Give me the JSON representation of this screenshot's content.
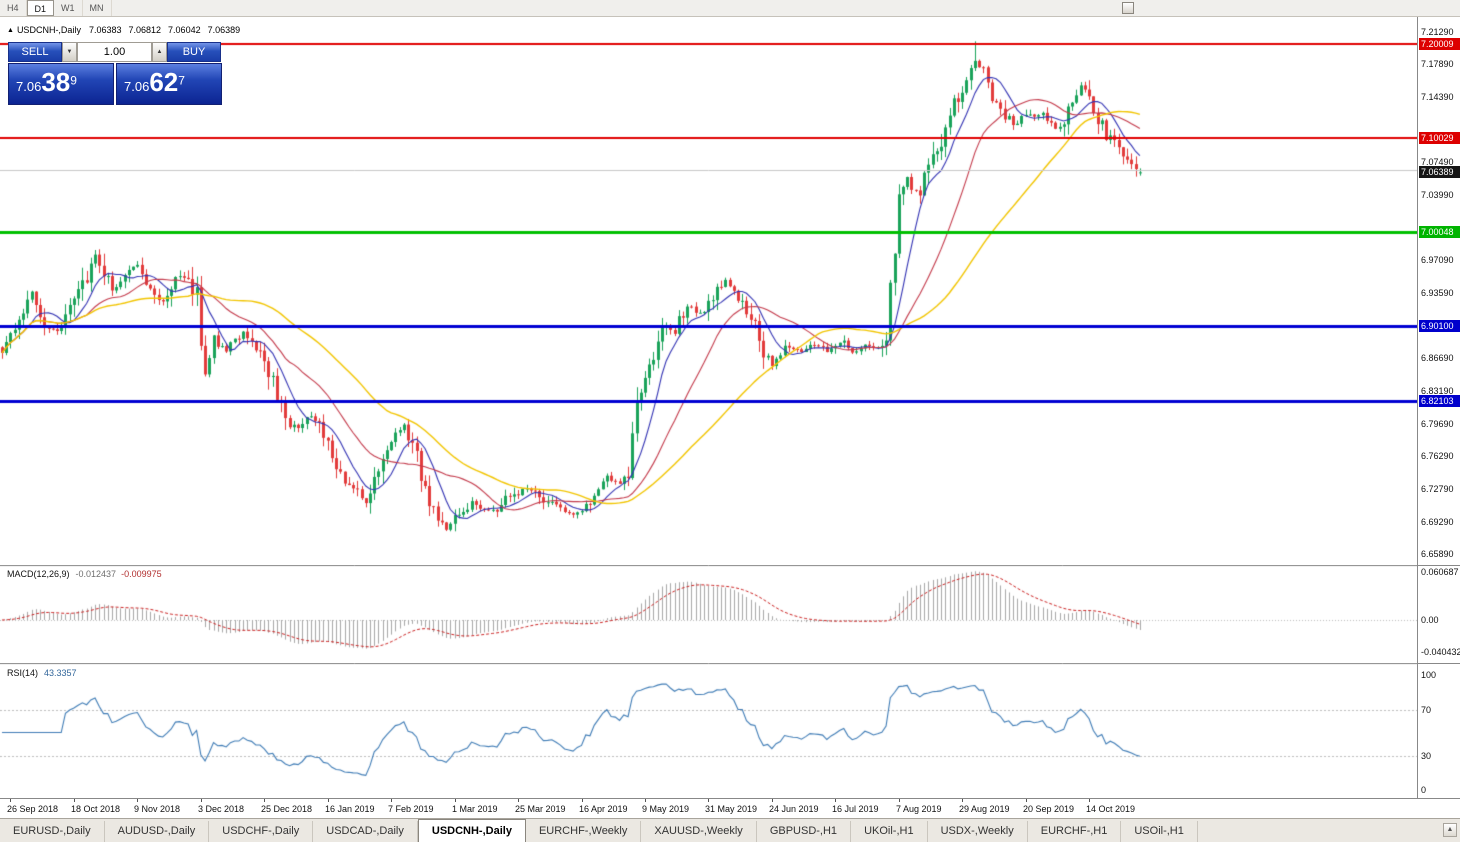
{
  "icons": {
    "marker": "▲",
    "spin_down": "▼",
    "spin_up": "▲",
    "tab_scroll_up": "▲"
  },
  "toolbar": {
    "timeframes": [
      {
        "label": "H4",
        "active": false
      },
      {
        "label": "D1",
        "active": true
      },
      {
        "label": "W1",
        "active": false
      },
      {
        "label": "MN",
        "active": false
      }
    ]
  },
  "chart_header": {
    "symbol": "USDCNH-,Daily",
    "open": "7.06383",
    "high": "7.06812",
    "low": "7.06042",
    "close": "7.06389"
  },
  "trade_panel": {
    "sell_label": "SELL",
    "buy_label": "BUY",
    "volume": "1.00",
    "sell_price": {
      "small": "7.06",
      "big": "38",
      "sup": "9"
    },
    "buy_price": {
      "small": "7.06",
      "big": "62",
      "sup": "7"
    }
  },
  "price_axis": {
    "ticks": [
      {
        "label": "7.21290",
        "price": 7.2129
      },
      {
        "label": "7.17890",
        "price": 7.1789
      },
      {
        "label": "7.14390",
        "price": 7.1439
      },
      {
        "label": "7.07490",
        "price": 7.0749
      },
      {
        "label": "7.03990",
        "price": 7.0399
      },
      {
        "label": "6.97090",
        "price": 6.9709
      },
      {
        "label": "6.93590",
        "price": 6.9359
      },
      {
        "label": "6.86690",
        "price": 6.8669
      },
      {
        "label": "6.83190",
        "price": 6.8319
      },
      {
        "label": "6.79690",
        "price": 6.7969
      },
      {
        "label": "6.76290",
        "price": 6.7629
      },
      {
        "label": "6.72790",
        "price": 6.7279
      },
      {
        "label": "6.69290",
        "price": 6.6929
      },
      {
        "label": "6.65890",
        "price": 6.6589
      }
    ],
    "badges": [
      {
        "label": "7.20009",
        "price": 7.20009,
        "bg": "#dd0000"
      },
      {
        "label": "7.10029",
        "price": 7.10029,
        "bg": "#dd0000"
      },
      {
        "label": "7.06389",
        "price": 7.06389,
        "bg": "#151515"
      },
      {
        "label": "7.00048",
        "price": 7.00048,
        "bg": "#00b400"
      },
      {
        "label": "6.90100",
        "price": 6.901,
        "bg": "#0000cc"
      },
      {
        "label": "6.82103",
        "price": 6.82103,
        "bg": "#0000cc"
      }
    ]
  },
  "chart_data": {
    "type": "candlestick",
    "symbol": "USDCNH",
    "timeframe": "Daily",
    "title": "USDCNH-,Daily",
    "price_range": {
      "top": 7.2129,
      "bottom": 6.6589
    },
    "last_candle": {
      "open": 7.06383,
      "high": 7.06812,
      "low": 7.06042,
      "close": 7.06389
    },
    "num_candles": 270,
    "seed": 9,
    "spike": {
      "index": 230,
      "high": 7.203
    },
    "trend_anchors": [
      [
        0,
        6.875
      ],
      [
        4,
        6.9
      ],
      [
        7,
        6.935
      ],
      [
        10,
        6.905
      ],
      [
        13,
        6.895
      ],
      [
        17,
        6.93
      ],
      [
        20,
        6.955
      ],
      [
        22,
        6.975
      ],
      [
        24,
        6.96
      ],
      [
        26,
        6.94
      ],
      [
        29,
        6.955
      ],
      [
        32,
        6.965
      ],
      [
        35,
        6.945
      ],
      [
        38,
        6.925
      ],
      [
        40,
        6.94
      ],
      [
        42,
        6.955
      ],
      [
        44,
        6.95
      ],
      [
        46,
        6.935
      ],
      [
        47,
        6.875
      ],
      [
        48,
        6.85
      ],
      [
        50,
        6.885
      ],
      [
        53,
        6.875
      ],
      [
        57,
        6.895
      ],
      [
        60,
        6.88
      ],
      [
        62,
        6.865
      ],
      [
        65,
        6.83
      ],
      [
        68,
        6.79
      ],
      [
        71,
        6.8
      ],
      [
        74,
        6.805
      ],
      [
        77,
        6.775
      ],
      [
        79,
        6.745
      ],
      [
        82,
        6.73
      ],
      [
        86,
        6.715
      ],
      [
        89,
        6.75
      ],
      [
        91,
        6.775
      ],
      [
        95,
        6.795
      ],
      [
        98,
        6.76
      ],
      [
        100,
        6.725
      ],
      [
        103,
        6.7
      ],
      [
        105,
        6.685
      ],
      [
        108,
        6.7
      ],
      [
        111,
        6.715
      ],
      [
        114,
        6.705
      ],
      [
        117,
        6.705
      ],
      [
        120,
        6.72
      ],
      [
        124,
        6.73
      ],
      [
        127,
        6.72
      ],
      [
        130,
        6.71
      ],
      [
        133,
        6.705
      ],
      [
        136,
        6.7
      ],
      [
        140,
        6.715
      ],
      [
        143,
        6.74
      ],
      [
        146,
        6.735
      ],
      [
        148,
        6.745
      ],
      [
        149,
        6.79
      ],
      [
        150,
        6.82
      ],
      [
        152,
        6.84
      ],
      [
        153,
        6.86
      ],
      [
        155,
        6.88
      ],
      [
        157,
        6.905
      ],
      [
        159,
        6.895
      ],
      [
        162,
        6.925
      ],
      [
        165,
        6.915
      ],
      [
        168,
        6.925
      ],
      [
        170,
        6.945
      ],
      [
        171,
        6.95
      ],
      [
        173,
        6.935
      ],
      [
        175,
        6.925
      ],
      [
        178,
        6.9
      ],
      [
        180,
        6.875
      ],
      [
        182,
        6.855
      ],
      [
        184,
        6.87
      ],
      [
        186,
        6.88
      ],
      [
        189,
        6.875
      ],
      [
        192,
        6.88
      ],
      [
        195,
        6.875
      ],
      [
        198,
        6.885
      ],
      [
        201,
        6.875
      ],
      [
        204,
        6.88
      ],
      [
        207,
        6.88
      ],
      [
        209,
        6.885
      ],
      [
        210,
        6.94
      ],
      [
        211,
        6.985
      ],
      [
        212,
        7.045
      ],
      [
        214,
        7.06
      ],
      [
        215,
        7.05
      ],
      [
        217,
        7.04
      ],
      [
        218,
        7.06
      ],
      [
        220,
        7.075
      ],
      [
        221,
        7.09
      ],
      [
        223,
        7.105
      ],
      [
        224,
        7.13
      ],
      [
        226,
        7.145
      ],
      [
        227,
        7.155
      ],
      [
        229,
        7.17
      ],
      [
        230,
        7.185
      ],
      [
        232,
        7.17
      ],
      [
        233,
        7.155
      ],
      [
        235,
        7.14
      ],
      [
        236,
        7.13
      ],
      [
        238,
        7.12
      ],
      [
        239,
        7.115
      ],
      [
        241,
        7.12
      ],
      [
        243,
        7.125
      ],
      [
        246,
        7.125
      ],
      [
        248,
        7.115
      ],
      [
        250,
        7.11
      ],
      [
        252,
        7.13
      ],
      [
        253,
        7.14
      ],
      [
        255,
        7.155
      ],
      [
        256,
        7.15
      ],
      [
        258,
        7.13
      ],
      [
        259,
        7.12
      ],
      [
        261,
        7.105
      ],
      [
        262,
        7.1
      ],
      [
        264,
        7.09
      ],
      [
        265,
        7.085
      ],
      [
        267,
        7.075
      ],
      [
        269,
        7.064
      ]
    ],
    "levels": [
      {
        "price": 7.20009,
        "color": "#e00000",
        "width": 2
      },
      {
        "price": 7.10029,
        "color": "#e00000",
        "width": 2
      },
      {
        "price": 7.0663,
        "color": "#c8c8c8",
        "width": 1
      },
      {
        "price": 7.00048,
        "color": "#00c000",
        "width": 3
      },
      {
        "price": 6.901,
        "color": "#0000d2",
        "width": 3
      },
      {
        "price": 6.82103,
        "color": "#0000d2",
        "width": 3
      }
    ],
    "moving_averages": [
      {
        "period": 8,
        "color": "#3333b4"
      },
      {
        "period": 21,
        "color": "#c43a4b"
      },
      {
        "period": 45,
        "color": "#f2c500"
      }
    ],
    "candle_colors": {
      "bull": "#1aa35a",
      "bear": "#e23b3b"
    }
  },
  "macd_panel": {
    "label": "MACD(12,26,9)",
    "value_main": "-0.012437",
    "value_signal": "-0.009975",
    "axis": [
      {
        "label": "0.060687",
        "value": 0.060687
      },
      {
        "label": "0.00",
        "value": 0
      },
      {
        "label": "-0.040432",
        "value": -0.040432
      }
    ]
  },
  "rsi_panel": {
    "label": "RSI(14)",
    "value": "43.3357",
    "levels": [
      70,
      30
    ],
    "axis": [
      {
        "label": "100",
        "value": 100
      },
      {
        "label": "70",
        "value": 70
      },
      {
        "label": "30",
        "value": 30
      },
      {
        "label": "0",
        "value": 0
      }
    ]
  },
  "date_axis": {
    "start_index": 2,
    "step": 15,
    "labels": [
      "26 Sep 2018",
      "18 Oct 2018",
      "9 Nov 2018",
      "3 Dec 2018",
      "25 Dec 2018",
      "16 Jan 2019",
      "7 Feb 2019",
      "1 Mar 2019",
      "25 Mar 2019",
      "16 Apr 2019",
      "9 May 2019",
      "31 May 2019",
      "24 Jun 2019",
      "16 Jul 2019",
      "7 Aug 2019",
      "29 Aug 2019",
      "20 Sep 2019",
      "14 Oct 2019"
    ]
  },
  "tabs": [
    {
      "label": "EURUSD-,Daily",
      "active": false
    },
    {
      "label": "AUDUSD-,Daily",
      "active": false
    },
    {
      "label": "USDCHF-,Daily",
      "active": false
    },
    {
      "label": "USDCAD-,Daily",
      "active": false
    },
    {
      "label": "USDCNH-,Daily",
      "active": true
    },
    {
      "label": "EURCHF-,Weekly",
      "active": false
    },
    {
      "label": "XAUUSD-,Weekly",
      "active": false
    },
    {
      "label": "GBPUSD-,H1",
      "active": false
    },
    {
      "label": "UKOil-,H1",
      "active": false
    },
    {
      "label": "USDX-,Weekly",
      "active": false
    },
    {
      "label": "EURCHF-,H1",
      "active": false
    },
    {
      "label": "USOil-,H1",
      "active": false
    }
  ]
}
